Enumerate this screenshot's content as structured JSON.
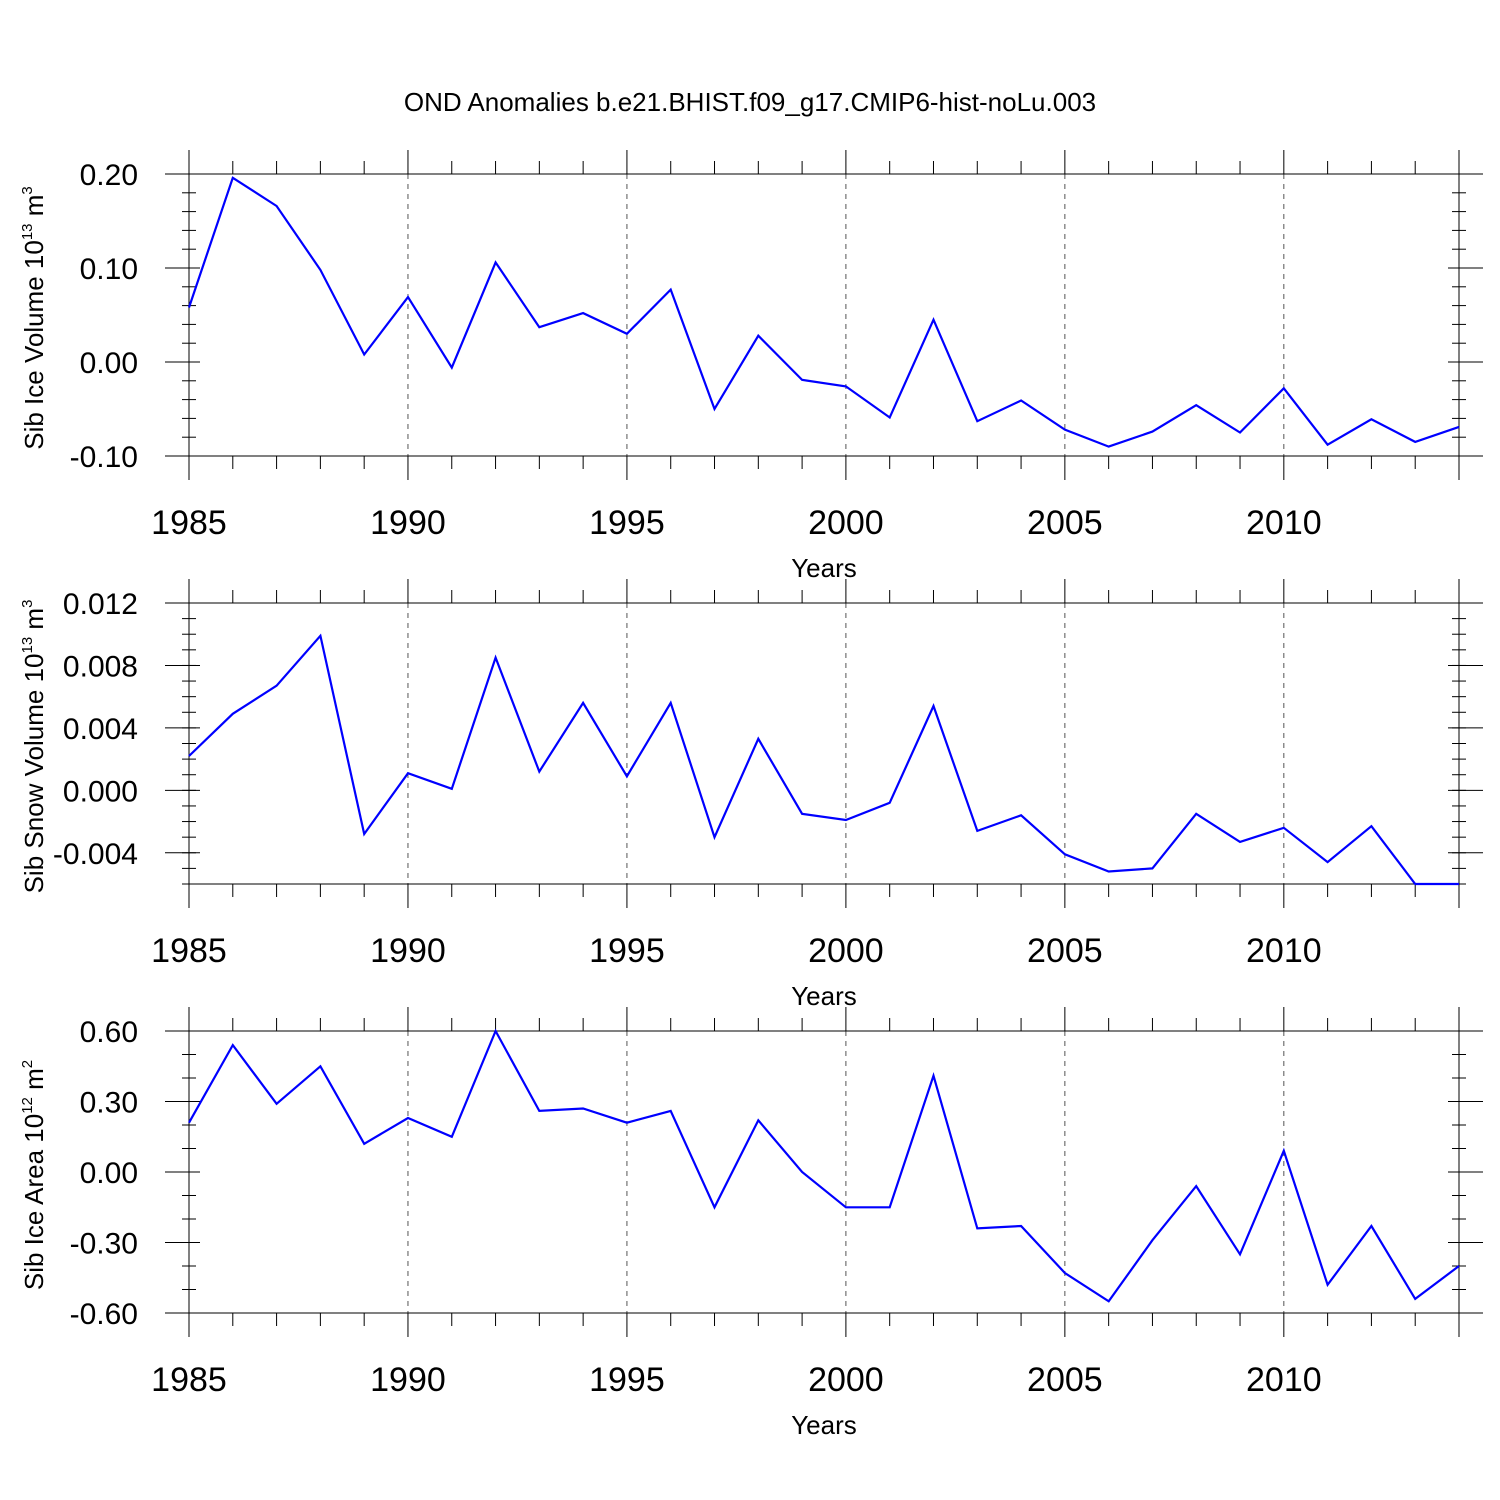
{
  "chart_data": {
    "type": "line",
    "title": "OND Anomalies b.e21.BHIST.f09_g17.CMIP6-hist-noLu.003",
    "x": [
      1985,
      1986,
      1987,
      1988,
      1989,
      1990,
      1991,
      1992,
      1993,
      1994,
      1995,
      1996,
      1997,
      1998,
      1999,
      2000,
      2001,
      2002,
      2003,
      2004,
      2005,
      2006,
      2007,
      2008,
      2009,
      2010,
      2011,
      2012,
      2013,
      2014
    ],
    "xlim": [
      1985,
      2014
    ],
    "x_major_ticks": [
      1985,
      1990,
      1995,
      2000,
      2005,
      2010
    ],
    "x_major_tick_labels": [
      "1985",
      "1990",
      "1995",
      "2000",
      "2005",
      "2010"
    ],
    "grid": "dashed vertical lines at major x ticks",
    "panels": [
      {
        "name": "ice-volume",
        "ylabel_prefix": "Sib Ice Volume 10",
        "ylabel_exponent": "13",
        "ylabel_unit": " m",
        "ylabel_unit_exponent": "3",
        "xlabel": "Years",
        "ylim": [
          -0.1,
          0.2
        ],
        "y_major_ticks": [
          -0.1,
          0.0,
          0.1,
          0.2
        ],
        "y_major_tick_labels": [
          "-0.10",
          "0.00",
          "0.10",
          "0.20"
        ],
        "y_minor_step": 0.02,
        "series": [
          {
            "name": "Sib Ice Volume",
            "color": "#0000ff",
            "values": [
              0.058,
              0.196,
              0.166,
              0.098,
              0.008,
              0.069,
              -0.006,
              0.106,
              0.037,
              0.052,
              0.03,
              0.077,
              -0.05,
              0.028,
              -0.019,
              -0.026,
              -0.059,
              0.045,
              -0.063,
              -0.041,
              -0.072,
              -0.09,
              -0.074,
              -0.046,
              -0.075,
              -0.028,
              -0.088,
              -0.061,
              -0.085,
              -0.069
            ]
          }
        ]
      },
      {
        "name": "snow-volume",
        "ylabel_prefix": "Sib Snow Volume 10",
        "ylabel_exponent": "13",
        "ylabel_unit": " m",
        "ylabel_unit_exponent": "3",
        "xlabel": "Years",
        "ylim": [
          -0.006,
          0.012
        ],
        "y_major_ticks": [
          -0.004,
          0.0,
          0.004,
          0.008,
          0.012
        ],
        "y_major_tick_labels": [
          "-0.004",
          "0.000",
          "0.004",
          "0.008",
          "0.012"
        ],
        "y_minor_step": 0.001,
        "series": [
          {
            "name": "Sib Snow Volume",
            "color": "#0000ff",
            "values": [
              0.0022,
              0.0049,
              0.0067,
              0.0099,
              -0.0028,
              0.0011,
              0.0001,
              0.0085,
              0.0012,
              0.0056,
              0.0009,
              0.0056,
              -0.003,
              0.0033,
              -0.0015,
              -0.0019,
              -0.0008,
              0.0054,
              -0.0026,
              -0.0016,
              -0.0041,
              -0.0052,
              -0.005,
              -0.0015,
              -0.0033,
              -0.0024,
              -0.0046,
              -0.0023,
              -0.006,
              -0.006
            ]
          }
        ]
      },
      {
        "name": "ice-area",
        "ylabel_prefix": "Sib Ice Area 10",
        "ylabel_exponent": "12",
        "ylabel_unit": " m",
        "ylabel_unit_exponent": "2",
        "xlabel": "Years",
        "ylim": [
          -0.6,
          0.6
        ],
        "y_major_ticks": [
          -0.6,
          -0.3,
          0.0,
          0.3,
          0.6
        ],
        "y_major_tick_labels": [
          "-0.60",
          "-0.30",
          "0.00",
          "0.30",
          "0.60"
        ],
        "y_minor_step": 0.1,
        "series": [
          {
            "name": "Sib Ice Area",
            "color": "#0000ff",
            "values": [
              0.21,
              0.54,
              0.29,
              0.45,
              0.12,
              0.23,
              0.15,
              0.6,
              0.26,
              0.27,
              0.21,
              0.26,
              -0.15,
              0.22,
              0.0,
              -0.15,
              -0.15,
              0.41,
              -0.24,
              -0.23,
              -0.43,
              -0.55,
              -0.29,
              -0.06,
              -0.35,
              0.09,
              -0.48,
              -0.23,
              -0.54,
              -0.4
            ]
          }
        ]
      }
    ]
  }
}
